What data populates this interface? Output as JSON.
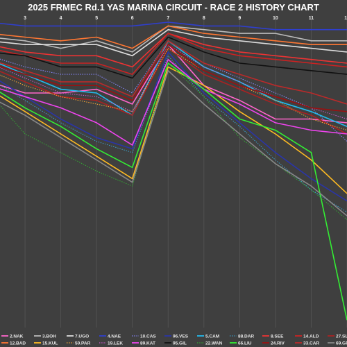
{
  "chart_data": {
    "type": "line",
    "title": "2025 FRMEC Rd.1 YAS MARINA CIRCUIT - RACE 2 HISTORY CHART",
    "xlabel": "",
    "ylabel": "",
    "x": [
      2,
      3,
      4,
      5,
      6,
      7,
      8,
      9,
      10,
      11,
      12
    ],
    "x_tick_labels": [
      "3",
      "4",
      "5",
      "6",
      "7",
      "8",
      "9",
      "10",
      "11",
      "12"
    ],
    "xlim": [
      2.3,
      12
    ],
    "ylim": [
      0,
      82
    ],
    "y_axis_inverted": true,
    "grid": true,
    "legend_placement": "bottom",
    "series": [
      {
        "name": "2.NAK",
        "color": "#ff66cc",
        "dash": "solid",
        "values": [
          16,
          19,
          19,
          18,
          22,
          6,
          17,
          21,
          26,
          26,
          27
        ]
      },
      {
        "name": "3.BOH",
        "color": "#bbbbbb",
        "dash": "solid",
        "values": [
          4,
          5,
          7,
          5,
          8,
          1,
          2,
          3,
          3,
          5,
          5
        ]
      },
      {
        "name": "7.UGO",
        "color": "#dddddd",
        "dash": "solid",
        "values": [
          5,
          6,
          6,
          6,
          9,
          2,
          4,
          5,
          6,
          7,
          8
        ]
      },
      {
        "name": "4.NAE",
        "color": "#2f3fcf",
        "dash": "solid",
        "values": [
          0,
          1,
          1,
          1,
          1,
          0,
          1,
          1,
          2,
          2,
          2
        ]
      },
      {
        "name": "10.CAS",
        "color": "#8888ff",
        "dash": "dotted",
        "values": [
          9,
          12,
          14,
          14,
          19,
          5,
          11,
          15,
          19,
          23,
          32
        ]
      },
      {
        "name": "96.VES",
        "color": "#2a35a8",
        "dash": "solid",
        "values": [
          14,
          20,
          26,
          31,
          34,
          8,
          19,
          27,
          35,
          42,
          48
        ]
      },
      {
        "name": "5.CAM",
        "color": "#22bbee",
        "dash": "solid",
        "values": [
          10,
          14,
          18,
          19,
          25,
          5,
          12,
          16,
          21,
          24,
          28
        ]
      },
      {
        "name": "88.DAR",
        "color": "#3aa0cc",
        "dash": "dotted",
        "values": [
          15,
          21,
          27,
          32,
          35,
          9,
          20,
          28,
          37,
          45,
          51
        ]
      },
      {
        "name": "8.SEE",
        "color": "#ee3333",
        "dash": "solid",
        "values": [
          6,
          8,
          9,
          9,
          12,
          3,
          6,
          8,
          9,
          10,
          11
        ]
      },
      {
        "name": "14.ALD",
        "color": "#cc2222",
        "dash": "solid",
        "values": [
          7,
          9,
          11,
          11,
          14,
          3,
          7,
          9,
          10,
          11,
          12
        ]
      },
      {
        "name": "27.SLA",
        "color": "#aa2222",
        "dash": "solid",
        "values": [
          12,
          16,
          20,
          21,
          25,
          7,
          14,
          18,
          22,
          25,
          30
        ]
      },
      {
        "name": "12.BAD",
        "color": "#ff7733",
        "dash": "solid",
        "values": [
          3,
          4,
          5,
          4,
          7,
          1,
          3,
          4,
          5,
          6,
          6
        ]
      },
      {
        "name": "15.KUL",
        "color": "#ffbb22",
        "dash": "solid",
        "values": [
          18,
          24,
          30,
          36,
          42,
          12,
          17,
          24,
          30,
          37,
          46
        ]
      },
      {
        "name": "50.PAR",
        "color": "#ffaa33",
        "dash": "dotted",
        "values": [
          13,
          17,
          20,
          22,
          24,
          7,
          13,
          17,
          21,
          26,
          29
        ]
      },
      {
        "name": "19.LEK",
        "color": "#cc55cc",
        "dash": "dotted",
        "values": [
          11,
          15,
          19,
          20,
          24,
          6,
          12,
          16,
          20,
          23,
          26
        ]
      },
      {
        "name": "89.KAT",
        "color": "#ee44ee",
        "dash": "solid",
        "values": [
          17,
          20,
          23,
          27,
          33,
          10,
          18,
          22,
          27,
          29,
          30
        ]
      },
      {
        "name": "95.GIL",
        "color": "#111111",
        "dash": "solid",
        "values": [
          8,
          9,
          12,
          12,
          15,
          4,
          8,
          11,
          12,
          13,
          14
        ]
      },
      {
        "name": "22.WAN",
        "color": "#33aa33",
        "dash": "dotted",
        "values": [
          19,
          30,
          35,
          40,
          44,
          11,
          20,
          31,
          38,
          45,
          53
        ]
      },
      {
        "name": "66.LIU",
        "color": "#33ee33",
        "dash": "solid",
        "values": [
          17,
          23,
          28,
          34,
          39,
          11,
          18,
          26,
          29,
          35,
          80
        ]
      },
      {
        "name": "24.RIV",
        "color": "#991111",
        "dash": "solid",
        "values": [
          11,
          14,
          17,
          17,
          21,
          6,
          13,
          17,
          20,
          23,
          24
        ]
      },
      {
        "name": "33.CAR",
        "color": "#bb2a2a",
        "dash": "solid",
        "values": [
          10,
          13,
          16,
          16,
          20,
          5,
          11,
          14,
          17,
          19,
          22
        ]
      },
      {
        "name": "69.GRE",
        "color": "#888888",
        "dash": "solid",
        "values": [
          20,
          25,
          31,
          37,
          43,
          13,
          22,
          30,
          38,
          44,
          52
        ]
      }
    ]
  }
}
